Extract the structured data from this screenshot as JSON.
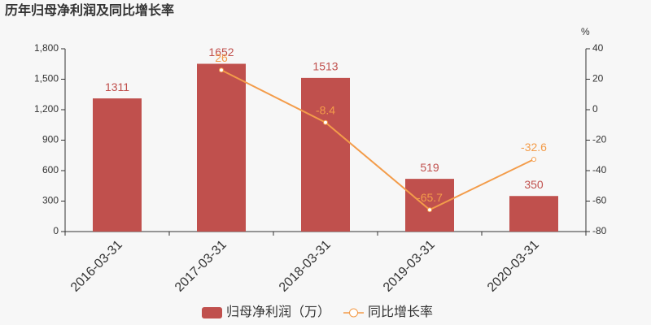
{
  "chart_data": {
    "type": "bar",
    "title": "历年归母净利润及同比增长率",
    "categories": [
      "2016-03-31",
      "2017-03-31",
      "2018-03-31",
      "2019-03-31",
      "2020-03-31"
    ],
    "series": [
      {
        "name": "归母净利润（万）",
        "type": "bar",
        "color": "#c0504d",
        "values": [
          1311,
          1652,
          1513,
          519,
          350
        ]
      },
      {
        "name": "同比增长率",
        "type": "line",
        "axis": "y2",
        "color": "#f39c4a",
        "values": [
          null,
          26,
          -8.4,
          -65.7,
          -32.6
        ]
      }
    ],
    "ylim": [
      0,
      1800
    ],
    "yticks": [
      0,
      300,
      600,
      900,
      {
        "value": 1200,
        "label": "1,200"
      },
      {
        "value": 1500,
        "label": "1,500"
      },
      {
        "value": 1800,
        "label": "1,800"
      }
    ],
    "y2lim": [
      -80,
      40
    ],
    "y2ticks": [
      -80,
      -60,
      -40,
      -20,
      0,
      20,
      40
    ],
    "y2_unit": "%",
    "grid": false,
    "legend": "bottom"
  }
}
